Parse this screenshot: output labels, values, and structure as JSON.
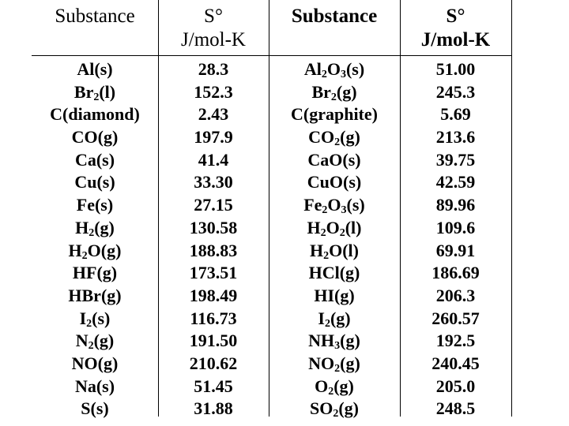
{
  "table": {
    "headers": {
      "substance_left": "Substance",
      "entropy_left": "S°",
      "unit_left": "J/mol-K",
      "substance_right": "Substance",
      "entropy_right": "S°",
      "unit_right": "J/mol-K"
    },
    "rows": [
      {
        "left_substance": "Al(s)",
        "left_value": "28.3",
        "right_substance": "Al2O3(s)",
        "right_value": "51.00"
      },
      {
        "left_substance": "Br2(l)",
        "left_value": "152.3",
        "right_substance": "Br2(g)",
        "right_value": "245.3"
      },
      {
        "left_substance": "C(diamond)",
        "left_value": "2.43",
        "right_substance": "C(graphite)",
        "right_value": "5.69"
      },
      {
        "left_substance": "CO(g)",
        "left_value": "197.9",
        "right_substance": "CO2(g)",
        "right_value": "213.6"
      },
      {
        "left_substance": "Ca(s)",
        "left_value": "41.4",
        "right_substance": "CaO(s)",
        "right_value": "39.75"
      },
      {
        "left_substance": "Cu(s)",
        "left_value": "33.30",
        "right_substance": "CuO(s)",
        "right_value": "42.59"
      },
      {
        "left_substance": "Fe(s)",
        "left_value": "27.15",
        "right_substance": "Fe2O3(s)",
        "right_value": "89.96"
      },
      {
        "left_substance": "H2(g)",
        "left_value": "130.58",
        "right_substance": "H2O2(l)",
        "right_value": "109.6"
      },
      {
        "left_substance": "H2O(g)",
        "left_value": "188.83",
        "right_substance": "H2O(l)",
        "right_value": "69.91"
      },
      {
        "left_substance": "HF(g)",
        "left_value": "173.51",
        "right_substance": "HCl(g)",
        "right_value": "186.69"
      },
      {
        "left_substance": "HBr(g)",
        "left_value": "198.49",
        "right_substance": "HI(g)",
        "right_value": "206.3"
      },
      {
        "left_substance": "I2(s)",
        "left_value": "116.73",
        "right_substance": "I2(g)",
        "right_value": "260.57"
      },
      {
        "left_substance": "N2(g)",
        "left_value": "191.50",
        "right_substance": "NH3(g)",
        "right_value": "192.5"
      },
      {
        "left_substance": "NO(g)",
        "left_value": "210.62",
        "right_substance": "NO2(g)",
        "right_value": "240.45"
      },
      {
        "left_substance": "Na(s)",
        "left_value": "51.45",
        "right_substance": "O2(g)",
        "right_value": "205.0"
      },
      {
        "left_substance": "S(s)",
        "left_value": "31.88",
        "right_substance": "SO2(g)",
        "right_value": "248.5"
      }
    ]
  }
}
